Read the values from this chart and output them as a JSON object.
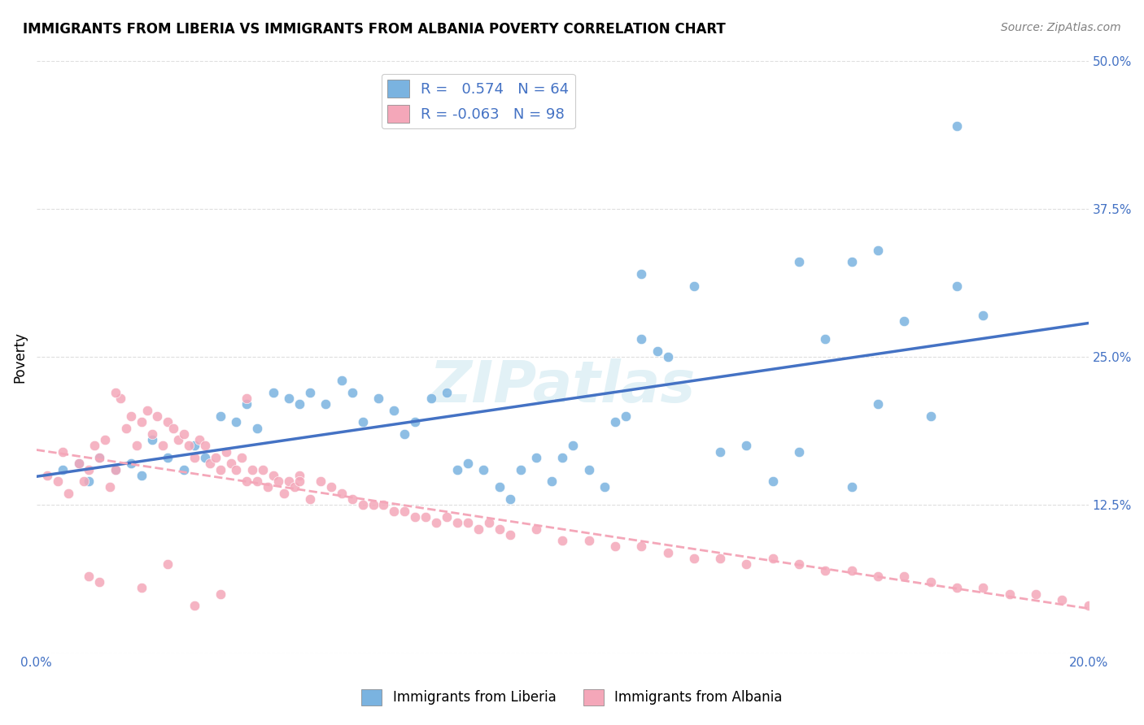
{
  "title": "IMMIGRANTS FROM LIBERIA VS IMMIGRANTS FROM ALBANIA POVERTY CORRELATION CHART",
  "source": "Source: ZipAtlas.com",
  "xlabel_label": "",
  "ylabel_label": "Poverty",
  "xlim": [
    0.0,
    0.2
  ],
  "ylim": [
    0.0,
    0.5
  ],
  "xtick_vals": [
    0.0,
    0.05,
    0.1,
    0.15,
    0.2
  ],
  "xtick_labels": [
    "0.0%",
    "",
    "",
    "",
    "20.0%"
  ],
  "ytick_vals": [
    0.0,
    0.125,
    0.25,
    0.375,
    0.5
  ],
  "ytick_labels": [
    "",
    "12.5%",
    "25.0%",
    "37.5%",
    "50.0%"
  ],
  "liberia_color": "#7ab3e0",
  "albania_color": "#f4a7b9",
  "liberia_line_color": "#4472c4",
  "albania_line_color": "#f4a7b9",
  "legend_R_liberia": "0.574",
  "legend_N_liberia": "64",
  "legend_R_albania": "-0.063",
  "legend_N_albania": "98",
  "watermark": "ZIPatlas",
  "liberia_scatter_x": [
    0.005,
    0.008,
    0.01,
    0.012,
    0.015,
    0.018,
    0.02,
    0.022,
    0.025,
    0.028,
    0.03,
    0.032,
    0.035,
    0.038,
    0.04,
    0.042,
    0.045,
    0.048,
    0.05,
    0.052,
    0.055,
    0.058,
    0.06,
    0.062,
    0.065,
    0.068,
    0.07,
    0.072,
    0.075,
    0.078,
    0.08,
    0.082,
    0.085,
    0.088,
    0.09,
    0.092,
    0.095,
    0.098,
    0.1,
    0.102,
    0.105,
    0.108,
    0.11,
    0.112,
    0.115,
    0.118,
    0.12,
    0.125,
    0.13,
    0.135,
    0.14,
    0.145,
    0.15,
    0.155,
    0.16,
    0.165,
    0.17,
    0.175,
    0.18,
    0.145,
    0.155,
    0.16,
    0.115,
    0.175
  ],
  "liberia_scatter_y": [
    0.155,
    0.16,
    0.145,
    0.165,
    0.155,
    0.16,
    0.15,
    0.18,
    0.165,
    0.155,
    0.175,
    0.165,
    0.2,
    0.195,
    0.21,
    0.19,
    0.22,
    0.215,
    0.21,
    0.22,
    0.21,
    0.23,
    0.22,
    0.195,
    0.215,
    0.205,
    0.185,
    0.195,
    0.215,
    0.22,
    0.155,
    0.16,
    0.155,
    0.14,
    0.13,
    0.155,
    0.165,
    0.145,
    0.165,
    0.175,
    0.155,
    0.14,
    0.195,
    0.2,
    0.265,
    0.255,
    0.25,
    0.31,
    0.17,
    0.175,
    0.145,
    0.17,
    0.265,
    0.14,
    0.21,
    0.28,
    0.2,
    0.31,
    0.285,
    0.33,
    0.33,
    0.34,
    0.32,
    0.445
  ],
  "albania_scatter_x": [
    0.002,
    0.004,
    0.005,
    0.006,
    0.008,
    0.009,
    0.01,
    0.011,
    0.012,
    0.013,
    0.014,
    0.015,
    0.016,
    0.017,
    0.018,
    0.019,
    0.02,
    0.021,
    0.022,
    0.023,
    0.024,
    0.025,
    0.026,
    0.027,
    0.028,
    0.029,
    0.03,
    0.031,
    0.032,
    0.033,
    0.034,
    0.035,
    0.036,
    0.037,
    0.038,
    0.039,
    0.04,
    0.041,
    0.042,
    0.043,
    0.044,
    0.045,
    0.046,
    0.047,
    0.048,
    0.049,
    0.05,
    0.052,
    0.054,
    0.056,
    0.058,
    0.06,
    0.062,
    0.064,
    0.066,
    0.068,
    0.07,
    0.072,
    0.074,
    0.076,
    0.078,
    0.08,
    0.082,
    0.084,
    0.086,
    0.088,
    0.09,
    0.095,
    0.1,
    0.105,
    0.11,
    0.115,
    0.12,
    0.125,
    0.13,
    0.135,
    0.14,
    0.145,
    0.15,
    0.155,
    0.16,
    0.165,
    0.17,
    0.175,
    0.18,
    0.185,
    0.19,
    0.195,
    0.2,
    0.04,
    0.05,
    0.015,
    0.02,
    0.025,
    0.03,
    0.035,
    0.01,
    0.012
  ],
  "albania_scatter_y": [
    0.15,
    0.145,
    0.17,
    0.135,
    0.16,
    0.145,
    0.155,
    0.175,
    0.165,
    0.18,
    0.14,
    0.155,
    0.215,
    0.19,
    0.2,
    0.175,
    0.195,
    0.205,
    0.185,
    0.2,
    0.175,
    0.195,
    0.19,
    0.18,
    0.185,
    0.175,
    0.165,
    0.18,
    0.175,
    0.16,
    0.165,
    0.155,
    0.17,
    0.16,
    0.155,
    0.165,
    0.145,
    0.155,
    0.145,
    0.155,
    0.14,
    0.15,
    0.145,
    0.135,
    0.145,
    0.14,
    0.15,
    0.13,
    0.145,
    0.14,
    0.135,
    0.13,
    0.125,
    0.125,
    0.125,
    0.12,
    0.12,
    0.115,
    0.115,
    0.11,
    0.115,
    0.11,
    0.11,
    0.105,
    0.11,
    0.105,
    0.1,
    0.105,
    0.095,
    0.095,
    0.09,
    0.09,
    0.085,
    0.08,
    0.08,
    0.075,
    0.08,
    0.075,
    0.07,
    0.07,
    0.065,
    0.065,
    0.06,
    0.055,
    0.055,
    0.05,
    0.05,
    0.045,
    0.04,
    0.215,
    0.145,
    0.22,
    0.055,
    0.075,
    0.04,
    0.05,
    0.065,
    0.06
  ]
}
